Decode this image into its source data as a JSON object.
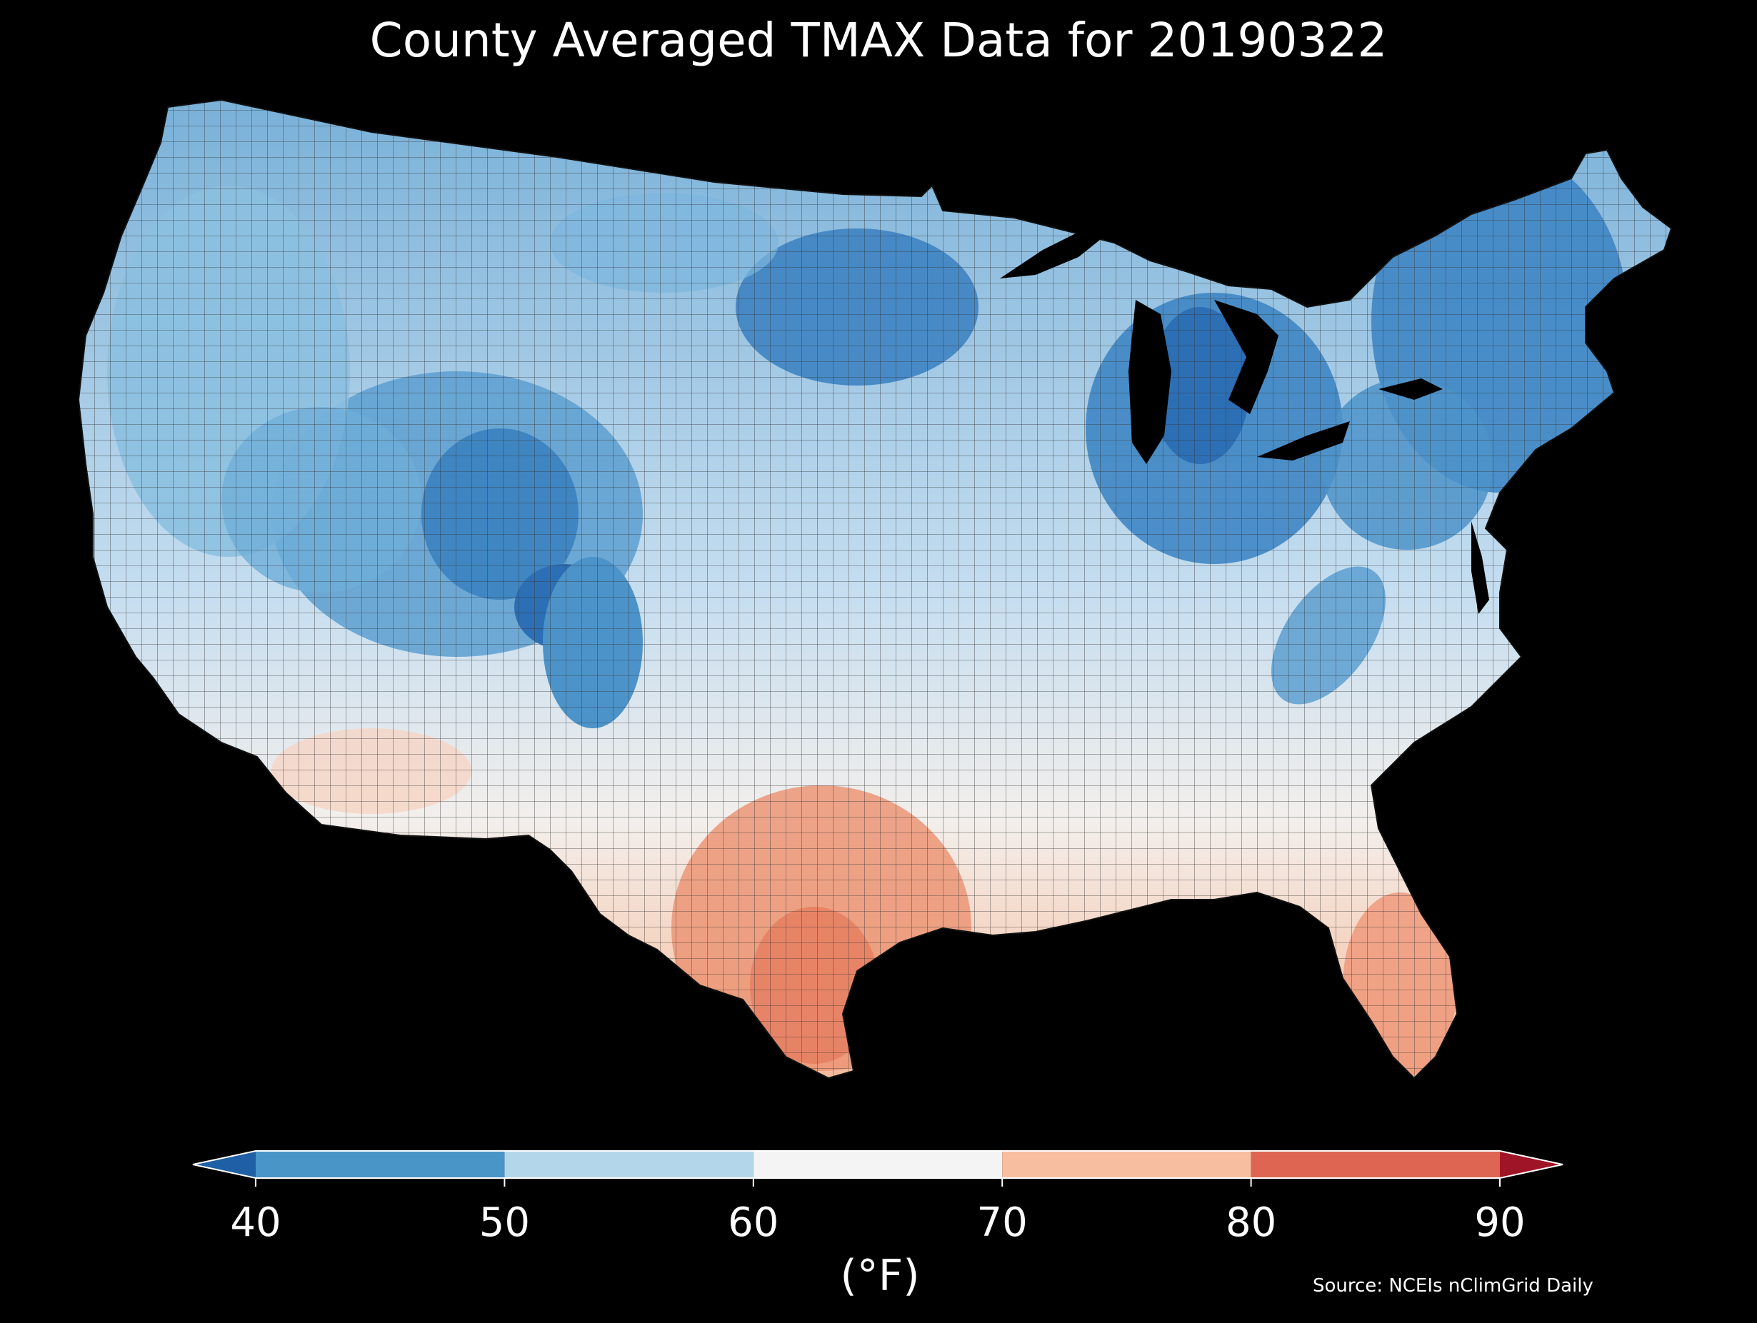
{
  "title": "County Averaged TMAX Data for 20190322",
  "colorbar": {
    "unit_label": "(°F)",
    "ticks": [
      "40",
      "50",
      "60",
      "70",
      "80",
      "90"
    ],
    "bins": [
      {
        "range": "<40",
        "color": "#1f5fa5"
      },
      {
        "range": "40-50",
        "color": "#4a95c8"
      },
      {
        "range": "50-60",
        "color": "#b4d6ea"
      },
      {
        "range": "60-70",
        "color": "#f4f4f4"
      },
      {
        "range": "70-80",
        "color": "#f7bea0"
      },
      {
        "range": "80-90",
        "color": "#dd6552"
      },
      {
        "range": ">90",
        "color": "#a01428"
      }
    ]
  },
  "source": "Source: NCEIs nClimGrid Daily",
  "map": {
    "region": "Contiguous United States",
    "background_color": "#000000",
    "border_color": "#222222"
  }
}
